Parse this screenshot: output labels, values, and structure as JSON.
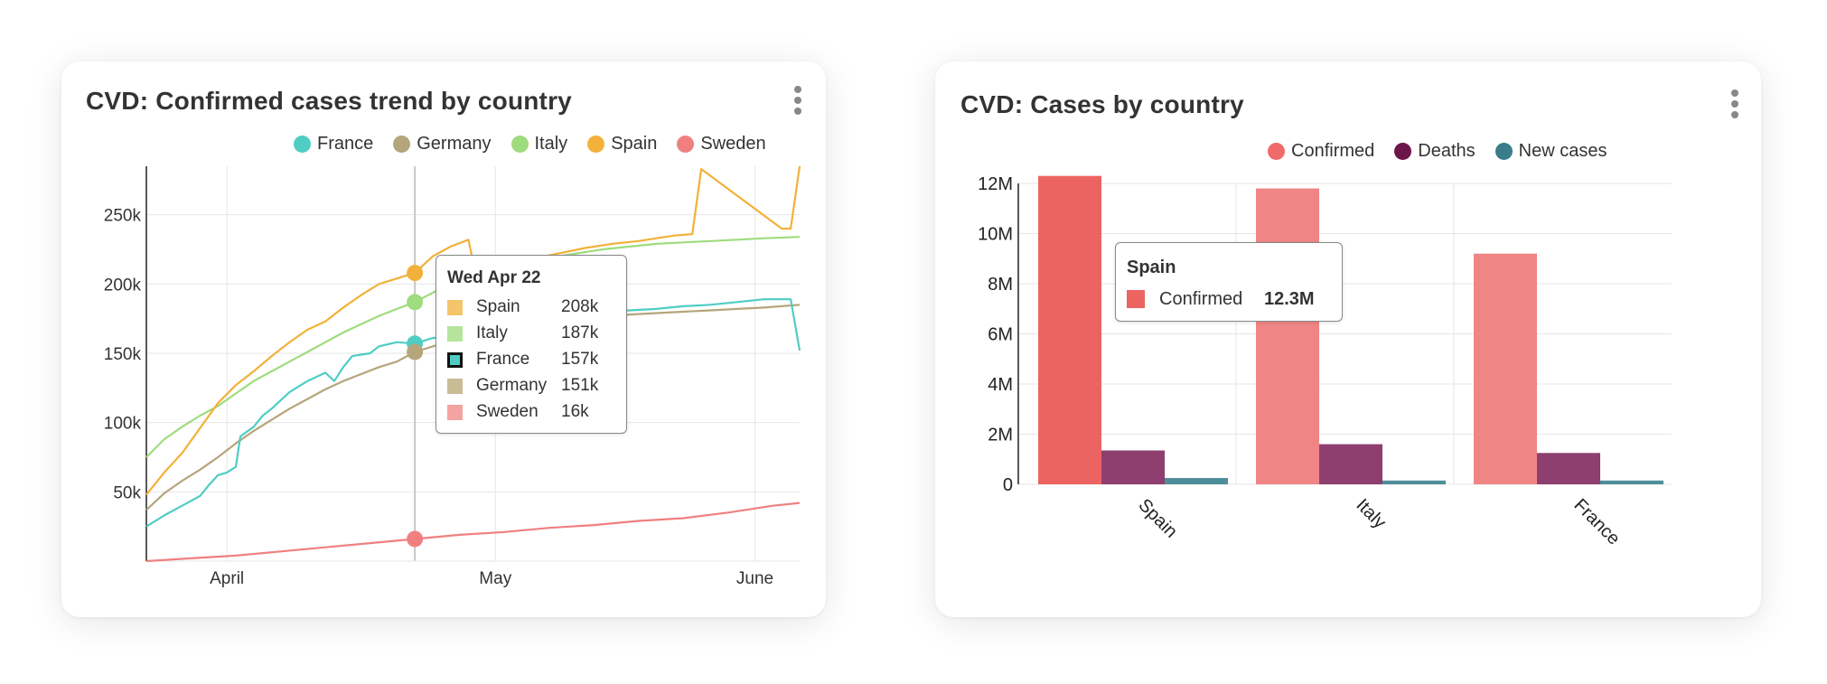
{
  "left_card": {
    "title": "CVD: Confirmed cases trend by country",
    "menu_icon": "kebab-vertical-icon",
    "legend": [
      {
        "label": "France",
        "color": "#4fcdc4"
      },
      {
        "label": "Germany",
        "color": "#b5a57b"
      },
      {
        "label": "Italy",
        "color": "#9fdc7e"
      },
      {
        "label": "Spain",
        "color": "#f2b13a"
      },
      {
        "label": "Sweden",
        "color": "#f08080"
      }
    ],
    "tooltip": {
      "title": "Wed Apr 22",
      "rows": [
        {
          "label": "Spain",
          "value": "208k",
          "color": "#f5c56a"
        },
        {
          "label": "Italy",
          "value": "187k",
          "color": "#b5e59c"
        },
        {
          "label": "France",
          "value": "157k",
          "color": "#4fcdc4",
          "highlight": true
        },
        {
          "label": "Germany",
          "value": "151k",
          "color": "#c9bc95"
        },
        {
          "label": "Sweden",
          "value": "16k",
          "color": "#f4a3a3"
        }
      ]
    }
  },
  "right_card": {
    "title": "CVD: Cases by country",
    "menu_icon": "kebab-vertical-icon",
    "legend": [
      {
        "label": "Confirmed",
        "color": "#f06a6a"
      },
      {
        "label": "Deaths",
        "color": "#6e1549"
      },
      {
        "label": "New cases",
        "color": "#3a7d8a"
      }
    ],
    "tooltip": {
      "title": "Spain",
      "row": {
        "label": "Confirmed",
        "value": "12.3M",
        "color": "#ec6462"
      }
    }
  },
  "chart_data": [
    {
      "type": "line",
      "title": "CVD: Confirmed cases trend by country",
      "xlabel": "",
      "ylabel": "",
      "x_ticks": [
        "April",
        "May",
        "June"
      ],
      "y_ticks": [
        "50k",
        "100k",
        "150k",
        "200k",
        "250k"
      ],
      "ylim": [
        0,
        285000
      ],
      "x_range_days": [
        0,
        73
      ],
      "x_tick_days": [
        9,
        39,
        68
      ],
      "crosshair_day": 30,
      "grid": true,
      "legend_position": "top-right",
      "series": [
        {
          "name": "Spain",
          "color": "#f2b13a",
          "points": [
            [
              0,
              48000
            ],
            [
              2,
              64000
            ],
            [
              4,
              78000
            ],
            [
              6,
              96000
            ],
            [
              8,
              114000
            ],
            [
              10,
              127000
            ],
            [
              12,
              137000
            ],
            [
              14,
              148000
            ],
            [
              16,
              158000
            ],
            [
              18,
              167000
            ],
            [
              20,
              173000
            ],
            [
              22,
              183000
            ],
            [
              24,
              192000
            ],
            [
              26,
              200000
            ],
            [
              28,
              204000
            ],
            [
              30,
              208000
            ],
            [
              32,
              220000
            ],
            [
              34,
              227000
            ],
            [
              36,
              232000
            ],
            [
              37,
              200000
            ],
            [
              39,
              208000
            ],
            [
              41,
              213000
            ],
            [
              43,
              218000
            ],
            [
              46,
              222000
            ],
            [
              49,
              226000
            ],
            [
              52,
              229000
            ],
            [
              55,
              231000
            ],
            [
              57,
              233000
            ],
            [
              59,
              235000
            ],
            [
              61,
              236000
            ],
            [
              62,
              283000
            ],
            [
              71,
              240000
            ],
            [
              72,
              240000
            ],
            [
              73,
              285000
            ]
          ]
        },
        {
          "name": "Italy",
          "color": "#9fdc7e",
          "points": [
            [
              0,
              75000
            ],
            [
              2,
              88000
            ],
            [
              4,
              97000
            ],
            [
              6,
              105000
            ],
            [
              8,
              112000
            ],
            [
              10,
              121000
            ],
            [
              12,
              130000
            ],
            [
              14,
              137000
            ],
            [
              16,
              144000
            ],
            [
              18,
              151000
            ],
            [
              20,
              158000
            ],
            [
              22,
              165000
            ],
            [
              24,
              171000
            ],
            [
              26,
              177000
            ],
            [
              28,
              182000
            ],
            [
              30,
              187000
            ],
            [
              33,
              197000
            ],
            [
              36,
              204000
            ],
            [
              39,
              210000
            ],
            [
              42,
              215000
            ],
            [
              45,
              219000
            ],
            [
              48,
              222000
            ],
            [
              51,
              225000
            ],
            [
              54,
              227000
            ],
            [
              57,
              229000
            ],
            [
              60,
              230000
            ],
            [
              63,
              231000
            ],
            [
              66,
              232000
            ],
            [
              69,
              233000
            ],
            [
              73,
              234000
            ]
          ]
        },
        {
          "name": "France",
          "color": "#4fcdc4",
          "points": [
            [
              0,
              25000
            ],
            [
              2,
              33000
            ],
            [
              4,
              40000
            ],
            [
              6,
              47000
            ],
            [
              7,
              55000
            ],
            [
              8,
              62000
            ],
            [
              9,
              64000
            ],
            [
              10,
              68000
            ],
            [
              10.5,
              90000
            ],
            [
              12,
              97000
            ],
            [
              13,
              105000
            ],
            [
              14,
              110000
            ],
            [
              15,
              116000
            ],
            [
              16,
              122000
            ],
            [
              18,
              130000
            ],
            [
              20,
              136000
            ],
            [
              21,
              130000
            ],
            [
              22,
              140000
            ],
            [
              23,
              148000
            ],
            [
              24,
              149000
            ],
            [
              25,
              150000
            ],
            [
              26,
              155000
            ],
            [
              28,
              158000
            ],
            [
              30,
              157000
            ],
            [
              32,
              161000
            ],
            [
              34,
              162000
            ],
            [
              36,
              165000
            ],
            [
              39,
              168000
            ],
            [
              42,
              172000
            ],
            [
              45,
              175000
            ],
            [
              48,
              178000
            ],
            [
              51,
              180000
            ],
            [
              54,
              181000
            ],
            [
              57,
              182000
            ],
            [
              60,
              184000
            ],
            [
              63,
              185000
            ],
            [
              66,
              187000
            ],
            [
              69,
              189000
            ],
            [
              72,
              189000
            ],
            [
              73,
              152000
            ]
          ]
        },
        {
          "name": "Germany",
          "color": "#b5a57b",
          "points": [
            [
              0,
              37000
            ],
            [
              2,
              49000
            ],
            [
              4,
              58000
            ],
            [
              6,
              66000
            ],
            [
              8,
              75000
            ],
            [
              10,
              85000
            ],
            [
              12,
              94000
            ],
            [
              14,
              102000
            ],
            [
              16,
              110000
            ],
            [
              18,
              117000
            ],
            [
              20,
              124000
            ],
            [
              22,
              130000
            ],
            [
              24,
              135000
            ],
            [
              26,
              140000
            ],
            [
              28,
              144000
            ],
            [
              30,
              151000
            ],
            [
              33,
              157000
            ],
            [
              36,
              161000
            ],
            [
              39,
              163000
            ],
            [
              42,
              166000
            ],
            [
              45,
              169000
            ],
            [
              48,
              172000
            ],
            [
              51,
              175000
            ],
            [
              54,
              178000
            ],
            [
              57,
              179000
            ],
            [
              60,
              180000
            ],
            [
              63,
              181000
            ],
            [
              66,
              182000
            ],
            [
              69,
              183000
            ],
            [
              73,
              185000
            ]
          ]
        },
        {
          "name": "Sweden",
          "color": "#f08080",
          "points": [
            [
              0,
              0
            ],
            [
              5,
              2000
            ],
            [
              10,
              4000
            ],
            [
              15,
              7000
            ],
            [
              20,
              10000
            ],
            [
              25,
              13000
            ],
            [
              30,
              16000
            ],
            [
              35,
              19000
            ],
            [
              40,
              21000
            ],
            [
              45,
              24000
            ],
            [
              50,
              26000
            ],
            [
              55,
              29000
            ],
            [
              60,
              31000
            ],
            [
              65,
              35000
            ],
            [
              70,
              40000
            ],
            [
              73,
              42000
            ]
          ]
        }
      ]
    },
    {
      "type": "bar",
      "title": "CVD: Cases by country",
      "xlabel": "",
      "ylabel": "",
      "categories": [
        "Spain",
        "Italy",
        "France"
      ],
      "y_ticks": [
        "0",
        "2M",
        "4M",
        "6M",
        "8M",
        "10M",
        "12M"
      ],
      "ylim": [
        0,
        12000000
      ],
      "grid": true,
      "legend_position": "top-right",
      "series": [
        {
          "name": "Confirmed",
          "color": "#f08585",
          "values": [
            12300000,
            11800000,
            9200000
          ]
        },
        {
          "name": "Deaths",
          "color": "#8e3e6f",
          "values": [
            1350000,
            1600000,
            1250000
          ]
        },
        {
          "name": "New cases",
          "color": "#4e8e9a",
          "values": [
            250000,
            150000,
            150000
          ]
        }
      ]
    }
  ]
}
